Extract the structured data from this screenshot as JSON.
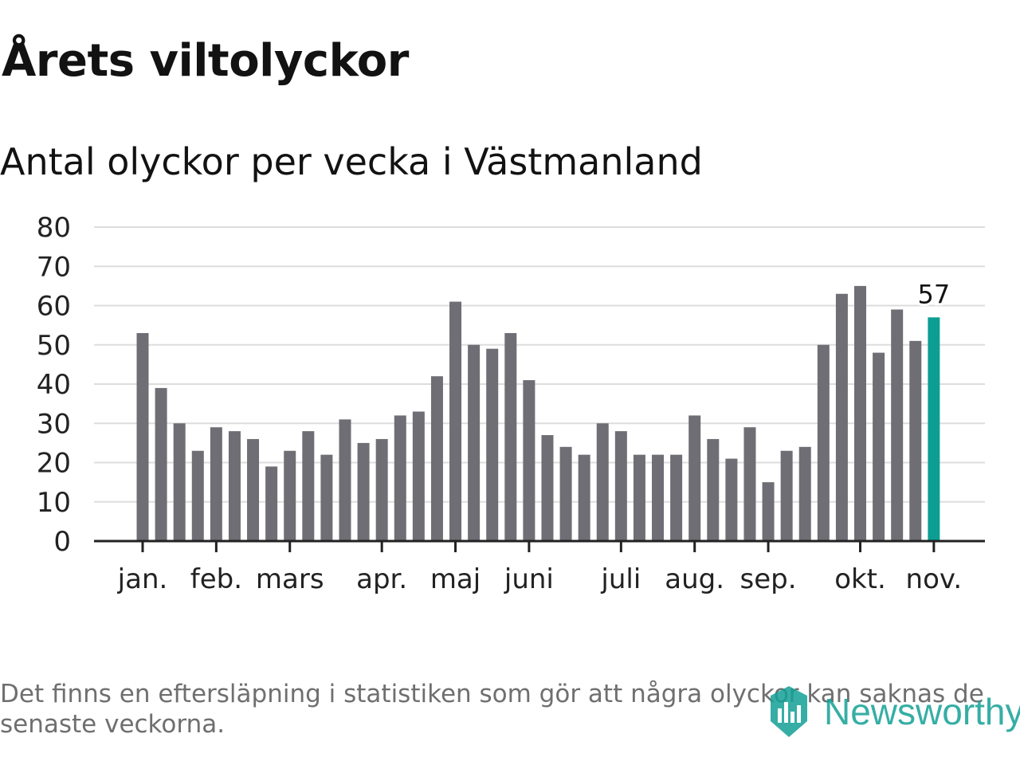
{
  "title": "Årets viltolyckor",
  "subtitle": "Antal olyckor per vecka i Västmanland",
  "footnote": "Det finns en eftersläpning i statistiken som gör att några olyckor kan saknas de senaste veckorna.",
  "brand": {
    "name": "Newsworthy",
    "icon": "newsworthy-logo-icon",
    "color": "#13a196"
  },
  "chart_data": {
    "type": "bar",
    "title": "Årets viltolyckor",
    "subtitle": "Antal olyckor per vecka i Västmanland",
    "xlabel": "",
    "ylabel": "",
    "ylim": [
      0,
      80
    ],
    "yticks": [
      0,
      10,
      20,
      30,
      40,
      50,
      60,
      70,
      80
    ],
    "grid": true,
    "bar_color": "#6f6e75",
    "highlight_color": "#0d9e93",
    "highlight_index": 43,
    "highlight_label": "57",
    "weeks": [
      1,
      2,
      3,
      4,
      5,
      6,
      7,
      8,
      9,
      10,
      11,
      12,
      13,
      14,
      15,
      16,
      17,
      18,
      19,
      20,
      21,
      22,
      23,
      24,
      25,
      26,
      27,
      28,
      29,
      30,
      31,
      32,
      33,
      34,
      35,
      36,
      37,
      38,
      39,
      40,
      41,
      42,
      43,
      44
    ],
    "values": [
      53,
      39,
      30,
      23,
      29,
      28,
      26,
      19,
      23,
      28,
      22,
      31,
      25,
      26,
      32,
      33,
      42,
      61,
      50,
      49,
      53,
      41,
      27,
      24,
      22,
      30,
      28,
      22,
      22,
      22,
      32,
      26,
      21,
      29,
      15,
      23,
      24,
      50,
      63,
      65,
      48,
      59,
      51,
      57
    ],
    "month_ticks": [
      {
        "label": "jan.",
        "index": 0
      },
      {
        "label": "feb.",
        "index": 4
      },
      {
        "label": "mars",
        "index": 8
      },
      {
        "label": "apr.",
        "index": 13
      },
      {
        "label": "maj",
        "index": 17
      },
      {
        "label": "juni",
        "index": 21
      },
      {
        "label": "juli",
        "index": 26
      },
      {
        "label": "aug.",
        "index": 30
      },
      {
        "label": "sep.",
        "index": 34
      },
      {
        "label": "okt.",
        "index": 39
      },
      {
        "label": "nov.",
        "index": 43
      }
    ]
  }
}
